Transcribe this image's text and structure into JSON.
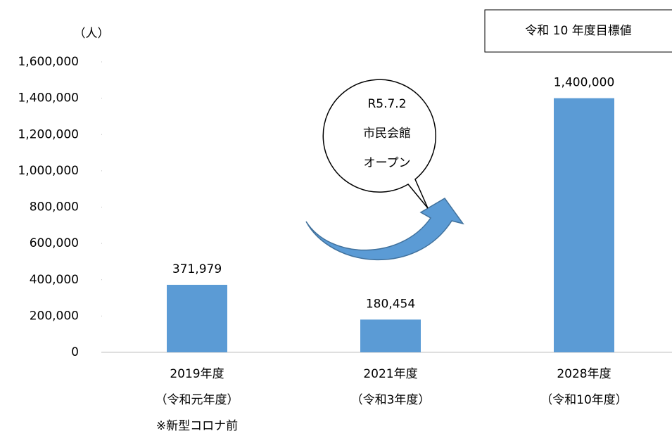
{
  "chart_data": {
    "type": "bar",
    "y_axis_label": "（人）",
    "annotation": "令和 10 年度目標値",
    "callout": [
      "R5.7.2",
      "市民会館",
      "オープン"
    ],
    "categories": [
      [
        "2019年度",
        "（令和元年度）",
        "※新型コロナ前"
      ],
      [
        "2021年度",
        "（令和3年度）"
      ],
      [
        "2028年度",
        "（令和10年度）"
      ]
    ],
    "values": [
      371979,
      180454,
      1400000
    ],
    "value_labels": [
      "371,979",
      "180,454",
      "1,400,000"
    ],
    "color": "#5b9bd5",
    "ylim": [
      0,
      1600000
    ],
    "yticks": [
      0,
      {
        "value": 200000,
        "label": "200,000"
      },
      {
        "value": 400000,
        "label": "400,000"
      },
      {
        "value": 600000,
        "label": "600,000"
      },
      {
        "value": 800000,
        "label": "800,000"
      },
      {
        "value": 1000000,
        "label": "1,000,000"
      },
      {
        "value": 1200000,
        "label": "1,200,000"
      },
      {
        "value": 1400000,
        "label": "1,400,000"
      },
      {
        "value": 1600000,
        "label": "1,600,000"
      }
    ]
  }
}
